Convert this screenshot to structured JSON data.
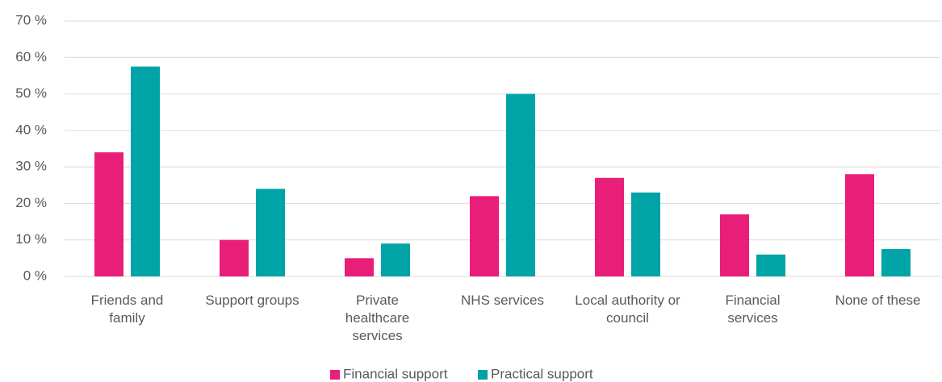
{
  "chart_data": {
    "type": "bar",
    "categories": [
      "Friends and family",
      "Support groups",
      "Private healthcare services",
      "NHS services",
      "Local authority or council",
      "Financial services",
      "None of these"
    ],
    "series": [
      {
        "name": "Financial support",
        "color": "#e91e78",
        "values": [
          34,
          10,
          5,
          22,
          27,
          17,
          28
        ]
      },
      {
        "name": "Practical support",
        "color": "#00a3a6",
        "values": [
          57.5,
          24,
          9,
          50,
          23,
          6,
          7.5
        ]
      }
    ],
    "ylim": [
      0,
      70
    ],
    "yticks": [
      {
        "value": 0,
        "label": "0 %"
      },
      {
        "value": 10,
        "label": "10 %"
      },
      {
        "value": 20,
        "label": "20 %"
      },
      {
        "value": 30,
        "label": "30 %"
      },
      {
        "value": 40,
        "label": "40 %"
      },
      {
        "value": 50,
        "label": "50 %"
      },
      {
        "value": 60,
        "label": "60 %"
      },
      {
        "value": 70,
        "label": "70 %"
      }
    ],
    "grid": true,
    "legend": "bottom"
  }
}
